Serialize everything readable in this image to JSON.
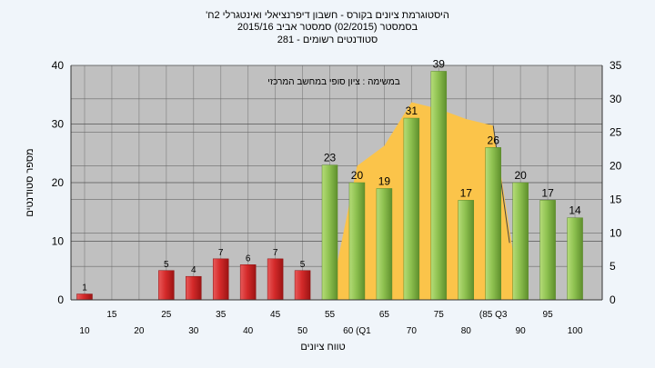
{
  "chart_data": {
    "type": "bar",
    "title_lines": [
      "'היסטוגרמת ציונים בקורס - חשבון דיפרנציאלי ואינטגרלי 2ח",
      "בסמסטר  (02/2015)  סמסטר אביב 2015/16",
      "סטודנטים רשומים - 281"
    ],
    "annotation": "במשימה : ציון סופי במחשב המרכזי",
    "xlabel": "טווח ציונים",
    "ylabel": "מספר סטודנטים",
    "ylim": [
      0,
      40
    ],
    "y_ticks": [
      0,
      10,
      20,
      30,
      40
    ],
    "y2lim": [
      0,
      35
    ],
    "y2_ticks": [
      0,
      5,
      10,
      15,
      20,
      25,
      30,
      35
    ],
    "x_ticks_lower": [
      "10",
      "20",
      "30",
      "40",
      "50",
      "60 (Q1",
      "70",
      "80",
      "90",
      "100"
    ],
    "x_ticks_upper": [
      "15",
      "25",
      "35",
      "45",
      "55",
      "65",
      "75",
      "(85 Q3",
      "95"
    ],
    "categories": [
      10,
      15,
      20,
      25,
      30,
      35,
      40,
      45,
      50,
      55,
      60,
      65,
      70,
      75,
      80,
      85,
      90,
      95,
      100
    ],
    "values": [
      1,
      0,
      0,
      5,
      4,
      7,
      6,
      7,
      5,
      23,
      20,
      19,
      31,
      39,
      17,
      26,
      20,
      17,
      14
    ],
    "pass_threshold": 55,
    "area_series": {
      "x": [
        55,
        60,
        65,
        70,
        75,
        80,
        85,
        90
      ],
      "y": [
        0,
        20,
        23,
        29.5,
        28.5,
        27,
        26,
        0
      ]
    },
    "colors": {
      "fail_bar": "#d42a2a",
      "pass_bar": "#8ec150",
      "area": "#fbc44a",
      "plot_background": "#c0c0c0",
      "page_background": "#f0f5fa"
    },
    "grid": true
  }
}
